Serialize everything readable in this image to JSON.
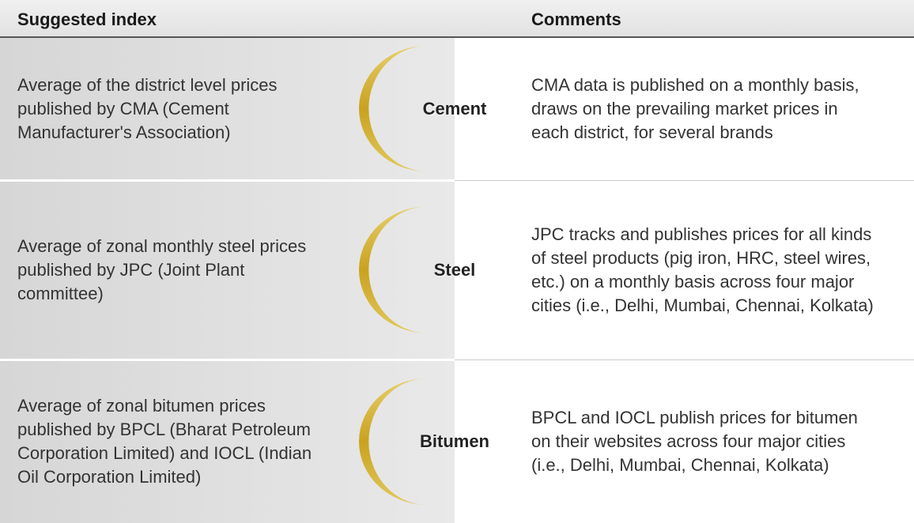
{
  "header": {
    "columns": [
      "Suggested index",
      "Comments"
    ]
  },
  "rows": [
    {
      "index": "Average of the district level prices published by CMA (Cement Manufacturer's Association)",
      "material": "Cement",
      "comment": "CMA data is published on a monthly basis, draws on the prevailing market prices in each district, for several brands"
    },
    {
      "index": "Average of zonal monthly steel prices published by JPC (Joint Plant committee)",
      "material": "Steel",
      "comment": "JPC tracks and publishes prices for all kinds of steel products (pig iron, HRC, steel wires, etc.) on a monthly basis across four major cities (i.e., Delhi, Mumbai, Chennai, Kolkata)"
    },
    {
      "index": "Average of zonal bitumen prices published by BPCL (Bharat Petroleum Corporation Limited) and IOCL (Indian Oil Corporation Limited)",
      "material": "Bitumen",
      "comment": "BPCL and IOCL publish prices for bitumen on their websites across four major cities (i.e., Delhi, Mumbai, Chennai, Kolkata)"
    }
  ]
}
